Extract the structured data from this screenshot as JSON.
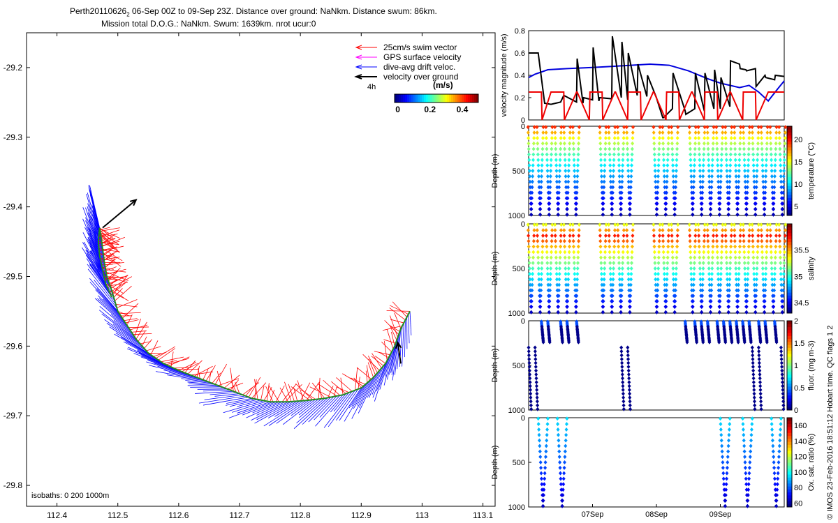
{
  "header": {
    "line1": "Perth20110626",
    "line1_sub": "2",
    "line1_rest": " 06-Sep 00Z to 09-Sep 23Z. Distance over ground: NaNkm. Distance swum: 86km.",
    "line2": "Mission total D.O.G.: NaNkm. Swum: 1639km. nrot ucur:0"
  },
  "side_note": "© IMOS 23-Feb-2016 18:51:12 Hobart time. QC flags 1  2",
  "chart_data": [
    {
      "id": "track_map",
      "type": "scatter",
      "title": "",
      "xlabel": "",
      "ylabel": "",
      "xlim": [
        112.35,
        113.12
      ],
      "ylim": [
        -29.83,
        -29.15
      ],
      "xticks": [
        "112.4",
        "112.5",
        "112.6",
        "112.7",
        "112.8",
        "112.9",
        "113",
        "113.1"
      ],
      "xtick_values": [
        112.4,
        112.5,
        112.6,
        112.7,
        112.8,
        112.9,
        113.0,
        113.1
      ],
      "yticks": [
        "-29.2",
        "-29.3",
        "-29.4",
        "-29.5",
        "-29.6",
        "-29.7",
        "-29.8"
      ],
      "ytick_values": [
        -29.2,
        -29.3,
        -29.4,
        -29.5,
        -29.6,
        -29.7,
        -29.8
      ],
      "track": {
        "lon": [
          112.98,
          112.965,
          112.955,
          112.94,
          112.92,
          112.9,
          112.87,
          112.84,
          112.81,
          112.78,
          112.75,
          112.72,
          112.69,
          112.66,
          112.63,
          112.6,
          112.575,
          112.55,
          112.53,
          112.515,
          112.5,
          112.49,
          112.482,
          112.478,
          112.475,
          112.472,
          112.47,
          112.468,
          112.47,
          112.475,
          112.48,
          112.49
        ],
        "lat": [
          -29.55,
          -29.575,
          -29.6,
          -29.625,
          -29.645,
          -29.66,
          -29.67,
          -29.675,
          -29.678,
          -29.68,
          -29.68,
          -29.675,
          -29.665,
          -29.655,
          -29.645,
          -29.635,
          -29.625,
          -29.61,
          -29.59,
          -29.57,
          -29.55,
          -29.52,
          -29.5,
          -29.48,
          -29.46,
          -29.44,
          -29.43,
          -29.45,
          -29.47,
          -29.49,
          -29.51,
          -29.53
        ]
      },
      "vog_arrows": [
        {
          "lon0": 112.475,
          "lat0": -29.43,
          "lon1": 112.53,
          "lat1": -29.39
        },
        {
          "lon0": 112.965,
          "lat0": -29.625,
          "lon1": 112.96,
          "lat1": -29.595
        }
      ],
      "legend": {
        "swim": "25cm/s swim vector",
        "gps": "GPS surface velocity",
        "drift": "dive-avg drift veloc.",
        "vog": "velocity over ground",
        "vog_time": "4h"
      },
      "colorbar": {
        "title": "(m/s)",
        "ticks": [
          "0",
          "0.2",
          "0.4"
        ],
        "tick_values": [
          0,
          0.2,
          0.4
        ],
        "range": [
          -0.02,
          0.5
        ]
      },
      "isobaths": "isobaths: 0   200  1000m",
      "colors": {
        "swim": "#ff0000",
        "gps": "#ff00ff",
        "drift": "#0000ff",
        "vog": "#000000",
        "track_mid": "#228b22"
      }
    },
    {
      "id": "velocity_timeseries",
      "type": "line",
      "ylabel": "velocity magnitude (m/s)",
      "ylim": [
        0,
        0.8
      ],
      "yticks": [
        "0",
        "0.2",
        "0.4",
        "0.6",
        "0.8"
      ],
      "ytick_values": [
        0,
        0.2,
        0.4,
        0.6,
        0.8
      ],
      "xlim": [
        0,
        4
      ],
      "series": [
        {
          "name": "dive-avg drift",
          "color": "#0000dd",
          "x": [
            0,
            0.1,
            0.3,
            0.6,
            1.0,
            1.3,
            1.6,
            1.9,
            2.2,
            2.5,
            2.8,
            3.0,
            3.15,
            3.3,
            3.45,
            3.6,
            3.75,
            3.9,
            4.0
          ],
          "y": [
            0.38,
            0.41,
            0.45,
            0.46,
            0.47,
            0.48,
            0.49,
            0.5,
            0.49,
            0.44,
            0.37,
            0.33,
            0.31,
            0.29,
            0.31,
            0.25,
            0.17,
            0.28,
            0.35
          ]
        },
        {
          "name": "speed over ground",
          "color": "#000000",
          "x": [
            0,
            0.15,
            0.25,
            0.35,
            0.5,
            0.55,
            0.75,
            0.76,
            0.85,
            0.86,
            1.0,
            1.01,
            1.1,
            1.11,
            1.3,
            1.31,
            1.45,
            1.46,
            1.55,
            1.56,
            1.7,
            1.71,
            1.85,
            1.86,
            2.0,
            2.01,
            2.1,
            2.11,
            2.25,
            2.26,
            2.45,
            2.46,
            2.6,
            2.61,
            2.75,
            2.76,
            2.9,
            2.91,
            3.0,
            3.01,
            3.15,
            3.16,
            3.3,
            3.31,
            3.4,
            3.41,
            3.55,
            3.56,
            3.7,
            3.71,
            3.85,
            3.86,
            4.0
          ],
          "y": [
            0.6,
            0.6,
            0.15,
            0.14,
            0.16,
            0.22,
            0.16,
            0.55,
            0.15,
            0.2,
            0.18,
            0.65,
            0.17,
            0.2,
            0.19,
            0.75,
            0.2,
            0.7,
            0.18,
            0.6,
            0.22,
            0.5,
            0.21,
            0.4,
            0.2,
            0.18,
            0.02,
            0.02,
            0.1,
            0.42,
            0.08,
            0.05,
            0.1,
            0.42,
            0.08,
            0.42,
            0.1,
            0.45,
            0.1,
            0.38,
            0.12,
            0.53,
            0.5,
            0.46,
            0.45,
            0.44,
            0.46,
            0.3,
            0.4,
            0.38,
            0.36,
            0.4,
            0.39
          ]
        },
        {
          "name": "swim (25cm/s)",
          "color": "#ee0000",
          "x": [
            0,
            0.2,
            0.21,
            0.35,
            0.36,
            0.55,
            0.56,
            0.75,
            0.76,
            0.95,
            0.96,
            1.15,
            1.16,
            1.35,
            1.36,
            1.55,
            1.56,
            1.75,
            1.76,
            1.95,
            1.96,
            2.15,
            2.16,
            2.35,
            2.36,
            2.55,
            2.56,
            2.75,
            2.76,
            2.95,
            2.96,
            3.15,
            3.16,
            3.35,
            3.36,
            3.55,
            3.56,
            3.75,
            3.76,
            4.0
          ],
          "y": [
            0.25,
            0.25,
            0.0,
            0.25,
            0.25,
            0.25,
            0.0,
            0.25,
            0.25,
            0.0,
            0.25,
            0.25,
            0.0,
            0.25,
            0.25,
            0.0,
            0.25,
            0.25,
            0.0,
            0.25,
            0.25,
            0.0,
            0.25,
            0.25,
            0.0,
            0.25,
            0.25,
            0.0,
            0.25,
            0.25,
            0.0,
            0.25,
            0.25,
            0.0,
            0.25,
            0.25,
            0.0,
            0.25,
            0.25,
            0.25
          ]
        }
      ]
    },
    {
      "id": "temperature_section",
      "type": "scatter",
      "ylabel": "Depth (m)",
      "ylim": [
        1000,
        0
      ],
      "yticks": [
        "0",
        "500",
        "1000"
      ],
      "ytick_values": [
        0,
        500,
        1000
      ],
      "colorbar": {
        "label": "temperature (°C)",
        "ticks": [
          "5",
          "10",
          "15",
          "20"
        ],
        "tick_values": [
          5,
          10,
          15,
          20
        ],
        "range": [
          3,
          23
        ]
      },
      "profiles": {
        "start": 0.04,
        "end": 3.97,
        "count": 29,
        "gaps": [
          [
            0.8,
            1.05
          ],
          [
            1.7,
            1.95
          ],
          [
            2.35,
            2.5
          ]
        ],
        "top": "shallow",
        "surface_value": 21,
        "bottom_value": 4
      }
    },
    {
      "id": "salinity_section",
      "type": "scatter",
      "ylabel": "Depth (m)",
      "ylim": [
        1000,
        0
      ],
      "yticks": [
        "0",
        "500",
        "1000"
      ],
      "ytick_values": [
        0,
        500,
        1000
      ],
      "colorbar": {
        "label": "salinity",
        "ticks": [
          "34.5",
          "35",
          "35.5"
        ],
        "tick_values": [
          34.5,
          35,
          35.5
        ],
        "range": [
          34.3,
          36.0
        ]
      },
      "profiles": {
        "start": 0.04,
        "end": 3.97,
        "count": 29,
        "gaps": [
          [
            0.8,
            1.05
          ],
          [
            1.7,
            1.95
          ],
          [
            2.35,
            2.5
          ]
        ],
        "surface_value": 35.3,
        "core_value": 35.8,
        "bottom_value": 34.4
      }
    },
    {
      "id": "fluorescence_section",
      "type": "scatter",
      "ylabel": "Depth (m)",
      "ylim": [
        1000,
        0
      ],
      "yticks": [
        "0",
        "500",
        "1000"
      ],
      "ytick_values": [
        0,
        500,
        1000
      ],
      "colorbar": {
        "label": "fluor. (mg m-3)",
        "ticks": [
          "0",
          "0.5",
          "1",
          "1.5",
          "2"
        ],
        "tick_values": [
          0,
          0.5,
          1,
          1.5,
          2
        ],
        "range": [
          0,
          2
        ]
      },
      "profiles": {
        "deep": [
          0.0,
          0.1,
          1.45,
          1.55,
          3.5,
          3.6,
          3.95
        ],
        "shallow": [
          0.2,
          0.3,
          0.5,
          0.6,
          0.75,
          2.45,
          2.6,
          2.7,
          2.8,
          2.95,
          3.05,
          3.15,
          3.25,
          3.35,
          3.45,
          3.6,
          3.7,
          3.85
        ],
        "surface_value": 0.4,
        "deep_value": 0.02
      }
    },
    {
      "id": "oxygen_section",
      "type": "scatter",
      "ylabel": "Depth (m)",
      "ylim": [
        1000,
        0
      ],
      "yticks": [
        "0",
        "500",
        "1000"
      ],
      "ytick_values": [
        0,
        500,
        1000
      ],
      "xticks": [
        "07Sep",
        "08Sep",
        "09Sep"
      ],
      "xtick_values": [
        1,
        2,
        3
      ],
      "colorbar": {
        "label": "Ox. sat. ratio (%)",
        "ticks": [
          "60",
          "80",
          "100",
          "120",
          "140",
          "160"
        ],
        "tick_values": [
          60,
          80,
          100,
          120,
          140,
          160
        ],
        "range": [
          55,
          170
        ]
      },
      "profiles": {
        "casts": [
          [
            0.15,
            0.3
          ],
          [
            0.45,
            0.6
          ],
          [
            3.0,
            3.15
          ],
          [
            3.35,
            3.5
          ],
          [
            3.8,
            3.95
          ]
        ],
        "surface_value": 95,
        "bottom_value": 62
      }
    }
  ]
}
